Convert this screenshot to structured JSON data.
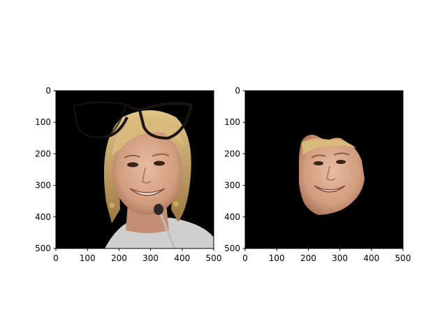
{
  "chart_data": [
    {
      "type": "image",
      "panel": "left",
      "image_content": "photo of a smiling blonde woman at a microphone, black background, dark eyeglasses outline overlaid near the top",
      "xlim": [
        0,
        500
      ],
      "ylim": [
        500,
        0
      ],
      "x_ticks": [
        0,
        100,
        200,
        300,
        400,
        500
      ],
      "y_ticks": [
        0,
        100,
        200,
        300,
        400,
        500
      ],
      "x_tick_labels": [
        "0",
        "100",
        "200",
        "300",
        "400",
        "500"
      ],
      "y_tick_labels": [
        "0",
        "100",
        "200",
        "300",
        "400",
        "500"
      ],
      "grid": false,
      "background_color": "#000000"
    },
    {
      "type": "image",
      "panel": "right",
      "image_content": "segmented face region of the same woman on a black background",
      "xlim": [
        0,
        500
      ],
      "ylim": [
        500,
        0
      ],
      "x_ticks": [
        0,
        100,
        200,
        300,
        400,
        500
      ],
      "y_ticks": [
        0,
        100,
        200,
        300,
        400,
        500
      ],
      "x_tick_labels": [
        "0",
        "100",
        "200",
        "300",
        "400",
        "500"
      ],
      "y_tick_labels": [
        "0",
        "100",
        "200",
        "300",
        "400",
        "500"
      ],
      "grid": false,
      "background_color": "#000000"
    }
  ],
  "colors": {
    "skin": "#d9a98a",
    "skin_shadow": "#b88066",
    "hair": "#caa66a",
    "hair_dark": "#8c6a3a",
    "glasses": "#1a1410",
    "mic": "#2a2a2a"
  }
}
